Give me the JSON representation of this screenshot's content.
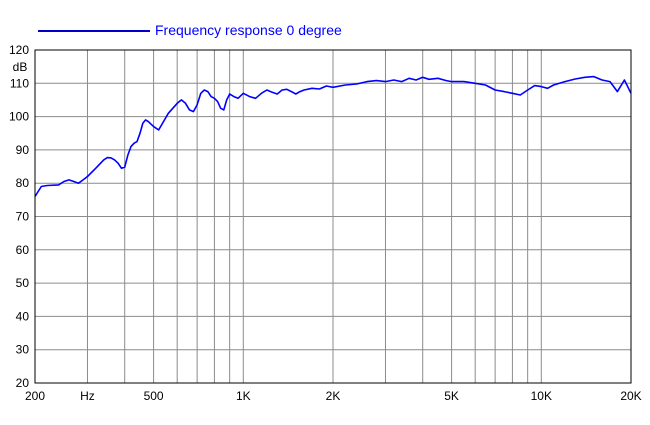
{
  "chart_data": {
    "type": "line",
    "title": "",
    "xlabel": "",
    "ylabel": "dB",
    "x_scale": "log",
    "xlim": [
      200,
      20000
    ],
    "ylim": [
      20,
      120
    ],
    "grid": true,
    "legend_position": "top-left",
    "line_color": "#0000ff",
    "x_ticks": [
      {
        "value": 200,
        "label": "200"
      },
      {
        "value": 300,
        "label": "Hz"
      },
      {
        "value": 500,
        "label": "500"
      },
      {
        "value": 1000,
        "label": "1K"
      },
      {
        "value": 2000,
        "label": "2K"
      },
      {
        "value": 5000,
        "label": "5K"
      },
      {
        "value": 10000,
        "label": "10K"
      },
      {
        "value": 20000,
        "label": "20K"
      }
    ],
    "y_ticks": [
      20,
      30,
      40,
      50,
      60,
      70,
      80,
      90,
      100,
      110,
      120
    ],
    "series": [
      {
        "name": "Frequency response 0 degree",
        "x": [
          200,
          210,
          220,
          240,
          250,
          260,
          270,
          280,
          290,
          300,
          320,
          340,
          350,
          360,
          370,
          380,
          390,
          400,
          410,
          420,
          430,
          440,
          450,
          460,
          470,
          480,
          500,
          520,
          540,
          560,
          580,
          600,
          620,
          640,
          660,
          680,
          700,
          720,
          740,
          760,
          780,
          800,
          820,
          840,
          860,
          880,
          900,
          930,
          960,
          1000,
          1050,
          1100,
          1150,
          1200,
          1250,
          1300,
          1350,
          1400,
          1450,
          1500,
          1550,
          1600,
          1700,
          1800,
          1900,
          2000,
          2200,
          2400,
          2600,
          2800,
          3000,
          3200,
          3400,
          3600,
          3800,
          4000,
          4200,
          4500,
          4800,
          5000,
          5500,
          6000,
          6500,
          7000,
          7500,
          8000,
          8500,
          9000,
          9500,
          10000,
          10500,
          11000,
          12000,
          13000,
          14000,
          15000,
          16000,
          17000,
          18000,
          19000,
          20000
        ],
        "y": [
          76,
          79,
          79.3,
          79.5,
          80.5,
          81,
          80.5,
          80,
          81,
          82,
          84.5,
          87,
          87.7,
          87.6,
          87,
          86,
          84.5,
          84.8,
          88.5,
          91,
          92,
          92.5,
          95,
          98,
          99,
          98.5,
          97,
          96,
          98.5,
          101,
          102.5,
          104,
          105,
          104,
          102,
          101.5,
          103.5,
          107,
          108,
          107.5,
          106,
          105.5,
          104.5,
          102.5,
          102,
          105,
          106.8,
          106,
          105.5,
          107,
          106,
          105.5,
          107,
          108,
          107.3,
          106.8,
          108,
          108.2,
          107.5,
          106.8,
          107.5,
          108,
          108.5,
          108.3,
          109.2,
          108.8,
          109.5,
          109.8,
          110.5,
          110.8,
          110.5,
          111,
          110.5,
          111.5,
          111,
          111.8,
          111.2,
          111.5,
          110.8,
          110.5,
          110.5,
          110,
          109.5,
          108,
          107.5,
          107,
          106.5,
          108,
          109.3,
          109,
          108.5,
          109.5,
          110.5,
          111.3,
          111.8,
          112,
          111,
          110.5,
          107.5,
          111,
          107
        ]
      }
    ]
  }
}
